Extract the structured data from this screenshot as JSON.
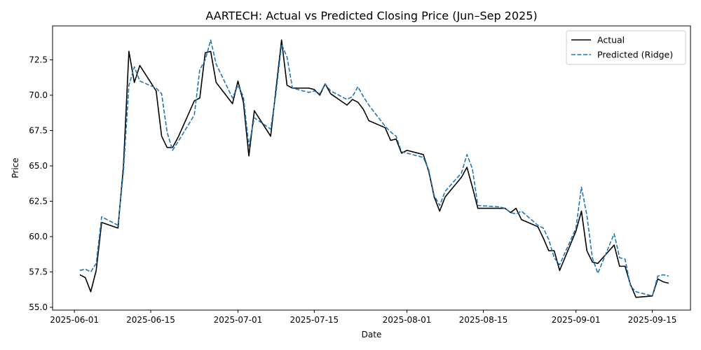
{
  "chart_data": {
    "type": "line",
    "title": "AARTECH: Actual vs Predicted Closing Price (Jun–Sep 2025)",
    "xlabel": "Date",
    "ylabel": "Price",
    "xlim": [
      "2025-05-28",
      "2025-09-22"
    ],
    "ylim": [
      54.8,
      74.9
    ],
    "x_ticks": [
      "2025-06-01",
      "2025-06-15",
      "2025-07-01",
      "2025-07-15",
      "2025-08-01",
      "2025-08-15",
      "2025-09-01",
      "2025-09-15"
    ],
    "y_ticks": [
      55.0,
      57.5,
      60.0,
      62.5,
      65.0,
      67.5,
      70.0,
      72.5
    ],
    "y_tick_labels": [
      "55.0",
      "57.5",
      "60.0",
      "62.5",
      "65.0",
      "67.5",
      "70.0",
      "72.5"
    ],
    "grid": false,
    "legend": "top-right",
    "x": [
      "2025-06-02",
      "2025-06-03",
      "2025-06-04",
      "2025-06-05",
      "2025-06-06",
      "2025-06-09",
      "2025-06-10",
      "2025-06-11",
      "2025-06-12",
      "2025-06-13",
      "2025-06-16",
      "2025-06-17",
      "2025-06-18",
      "2025-06-19",
      "2025-06-20",
      "2025-06-23",
      "2025-06-24",
      "2025-06-25",
      "2025-06-26",
      "2025-06-27",
      "2025-06-30",
      "2025-07-01",
      "2025-07-02",
      "2025-07-03",
      "2025-07-04",
      "2025-07-07",
      "2025-07-08",
      "2025-07-09",
      "2025-07-10",
      "2025-07-11",
      "2025-07-14",
      "2025-07-15",
      "2025-07-16",
      "2025-07-17",
      "2025-07-18",
      "2025-07-21",
      "2025-07-22",
      "2025-07-23",
      "2025-07-24",
      "2025-07-25",
      "2025-07-28",
      "2025-07-29",
      "2025-07-30",
      "2025-07-31",
      "2025-08-01",
      "2025-08-04",
      "2025-08-05",
      "2025-08-06",
      "2025-08-07",
      "2025-08-08",
      "2025-08-11",
      "2025-08-12",
      "2025-08-13",
      "2025-08-14",
      "2025-08-18",
      "2025-08-19",
      "2025-08-20",
      "2025-08-21",
      "2025-08-22",
      "2025-08-25",
      "2025-08-26",
      "2025-08-27",
      "2025-08-28",
      "2025-08-29",
      "2025-09-01",
      "2025-09-02",
      "2025-09-03",
      "2025-09-04",
      "2025-09-05",
      "2025-09-08",
      "2025-09-09",
      "2025-09-10",
      "2025-09-11",
      "2025-09-12",
      "2025-09-15",
      "2025-09-16",
      "2025-09-17",
      "2025-09-18"
    ],
    "series": [
      {
        "name": "Actual",
        "color": "#000000",
        "dash": "solid",
        "values": [
          57.3,
          57.1,
          56.1,
          57.6,
          61.0,
          60.6,
          65.0,
          73.1,
          70.9,
          72.1,
          70.3,
          67.1,
          66.3,
          66.3,
          67.0,
          69.6,
          69.8,
          73.0,
          73.1,
          70.9,
          69.4,
          71.0,
          69.5,
          65.7,
          68.9,
          67.1,
          70.5,
          73.9,
          70.7,
          70.5,
          70.5,
          70.4,
          70.0,
          70.8,
          70.1,
          69.3,
          69.7,
          69.5,
          69.0,
          68.2,
          67.7,
          66.8,
          66.9,
          65.9,
          66.1,
          65.8,
          64.6,
          62.8,
          61.8,
          62.8,
          64.2,
          64.9,
          63.5,
          62.0,
          62.0,
          62.0,
          61.7,
          62.0,
          61.2,
          60.7,
          59.9,
          59.0,
          59.0,
          57.6,
          60.4,
          61.8,
          59.0,
          58.2,
          58.1,
          59.4,
          57.9,
          57.9,
          56.6,
          55.7,
          55.8,
          57.0,
          56.8,
          56.7
        ]
      },
      {
        "name": "Predicted (Ridge)",
        "color": "#1f77b4",
        "dash": "dashed",
        "values": [
          57.6,
          57.7,
          57.5,
          58.1,
          61.4,
          60.8,
          64.6,
          70.7,
          72.0,
          71.0,
          70.5,
          70.1,
          67.4,
          66.1,
          66.7,
          68.6,
          71.8,
          72.5,
          73.9,
          72.2,
          69.8,
          70.7,
          69.9,
          66.4,
          68.4,
          67.6,
          70.2,
          73.6,
          72.7,
          70.5,
          70.2,
          70.3,
          70.1,
          70.8,
          70.3,
          69.7,
          69.9,
          70.6,
          69.9,
          69.3,
          67.8,
          67.4,
          67.1,
          66.0,
          65.9,
          65.6,
          64.7,
          62.9,
          62.2,
          63.2,
          64.5,
          65.8,
          64.8,
          62.2,
          62.1,
          62.0,
          61.7,
          61.6,
          61.8,
          60.8,
          60.6,
          59.8,
          58.5,
          58.0,
          60.6,
          63.5,
          61.5,
          58.5,
          57.4,
          60.2,
          58.5,
          58.4,
          56.5,
          56.1,
          55.8,
          57.2,
          57.3,
          57.2
        ]
      }
    ]
  }
}
